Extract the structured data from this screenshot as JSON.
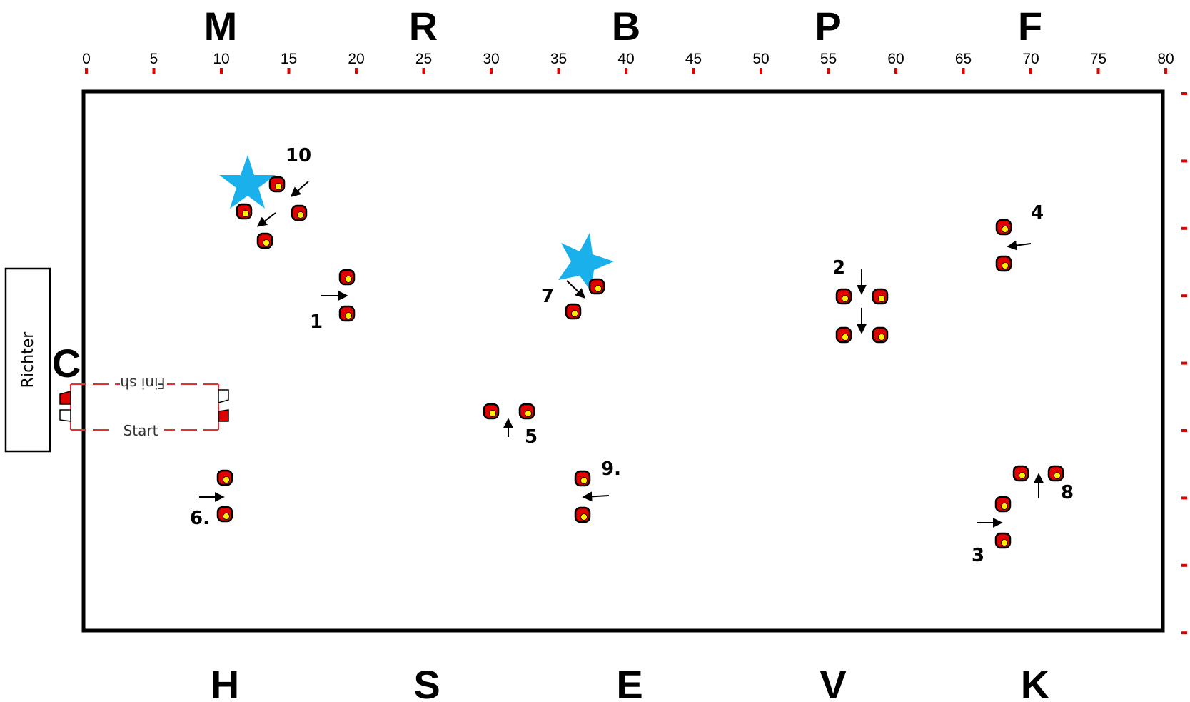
{
  "arena": {
    "top_letters": [
      "M",
      "R",
      "B",
      "P",
      "F"
    ],
    "bottom_letters": [
      "H",
      "S",
      "E",
      "V",
      "K"
    ],
    "side_letter": "C",
    "scale_ticks": [
      "0",
      "5",
      "10",
      "15",
      "20",
      "25",
      "30",
      "35",
      "40",
      "45",
      "50",
      "55",
      "60",
      "65",
      "70",
      "75",
      "80"
    ],
    "judge_box": "Richter",
    "start_label": "Start",
    "finish_label": "Fini sh",
    "colors": {
      "border": "#000000",
      "tick": "#e00000",
      "cone_fill": "#e00000",
      "cone_dot": "#ffee00",
      "star": "#1ab0ec",
      "corridor": "#e03030"
    }
  },
  "obstacles": [
    {
      "number": "1"
    },
    {
      "number": "2"
    },
    {
      "number": "3"
    },
    {
      "number": "4"
    },
    {
      "number": "5"
    },
    {
      "number": "6."
    },
    {
      "number": "7"
    },
    {
      "number": "8"
    },
    {
      "number": "9."
    },
    {
      "number": "10"
    }
  ]
}
